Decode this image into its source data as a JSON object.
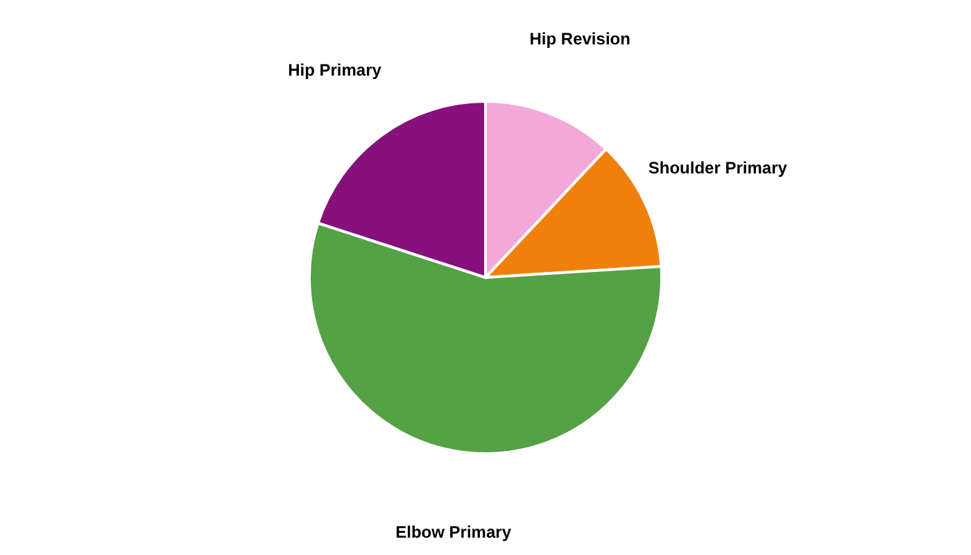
{
  "chart_data": {
    "type": "pie",
    "categories": [
      "Hip Revision",
      "Shoulder Primary",
      "Elbow Primary",
      "Hip Primary"
    ],
    "values": [
      12,
      12,
      56,
      20
    ],
    "colors": [
      "#f2a9d9",
      "#f0800b",
      "#55a146",
      "#87107c"
    ]
  }
}
